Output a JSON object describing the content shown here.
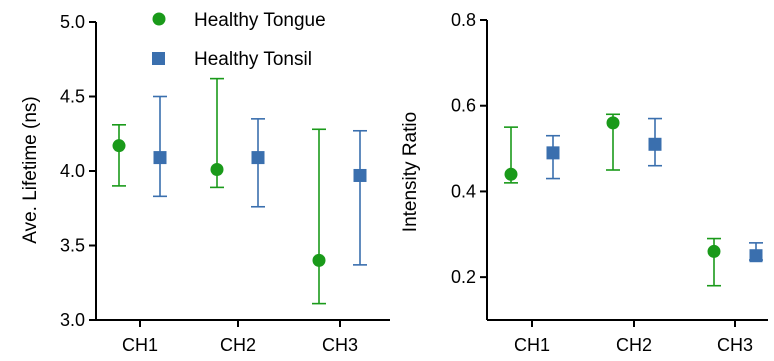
{
  "legend": {
    "position": "top",
    "items": [
      {
        "label": "Healthy Tongue",
        "color": "#1a9a1a",
        "marker": "circle"
      },
      {
        "label": "Healthy Tonsil",
        "color": "#3a6fae",
        "marker": "square"
      }
    ]
  },
  "chart_data": [
    {
      "type": "scatter",
      "ylabel": "Ave. Lifetime (ns)",
      "xlabel": "",
      "categories": [
        "CH1",
        "CH2",
        "CH3"
      ],
      "ylim": [
        3.0,
        5.0
      ],
      "yticks": [
        "3.0",
        "3.5",
        "4.0",
        "4.5",
        "5.0"
      ],
      "grid": false,
      "series": [
        {
          "name": "Healthy Tongue",
          "color": "#1a9a1a",
          "marker": "circle",
          "values": [
            4.17,
            4.01,
            3.4
          ],
          "err_low": [
            3.9,
            3.89,
            3.11
          ],
          "err_high": [
            4.31,
            4.62,
            4.28
          ]
        },
        {
          "name": "Healthy Tonsil",
          "color": "#3a6fae",
          "marker": "square",
          "values": [
            4.09,
            4.09,
            3.97
          ],
          "err_low": [
            3.83,
            3.76,
            3.37
          ],
          "err_high": [
            4.5,
            4.35,
            4.27
          ]
        }
      ]
    },
    {
      "type": "scatter",
      "ylabel": "Intensity Ratio",
      "xlabel": "",
      "categories": [
        "CH1",
        "CH2",
        "CH3"
      ],
      "ylim": [
        0.1,
        0.8
      ],
      "yticks": [
        "0.2",
        "0.4",
        "0.6",
        "0.8"
      ],
      "grid": false,
      "series": [
        {
          "name": "Healthy Tongue",
          "color": "#1a9a1a",
          "marker": "circle",
          "values": [
            0.44,
            0.56,
            0.26
          ],
          "err_low": [
            0.42,
            0.45,
            0.18
          ],
          "err_high": [
            0.55,
            0.58,
            0.29
          ]
        },
        {
          "name": "Healthy Tonsil",
          "color": "#3a6fae",
          "marker": "square",
          "values": [
            0.49,
            0.51,
            0.25
          ],
          "err_low": [
            0.43,
            0.46,
            0.24
          ],
          "err_high": [
            0.53,
            0.57,
            0.28
          ]
        }
      ]
    }
  ]
}
